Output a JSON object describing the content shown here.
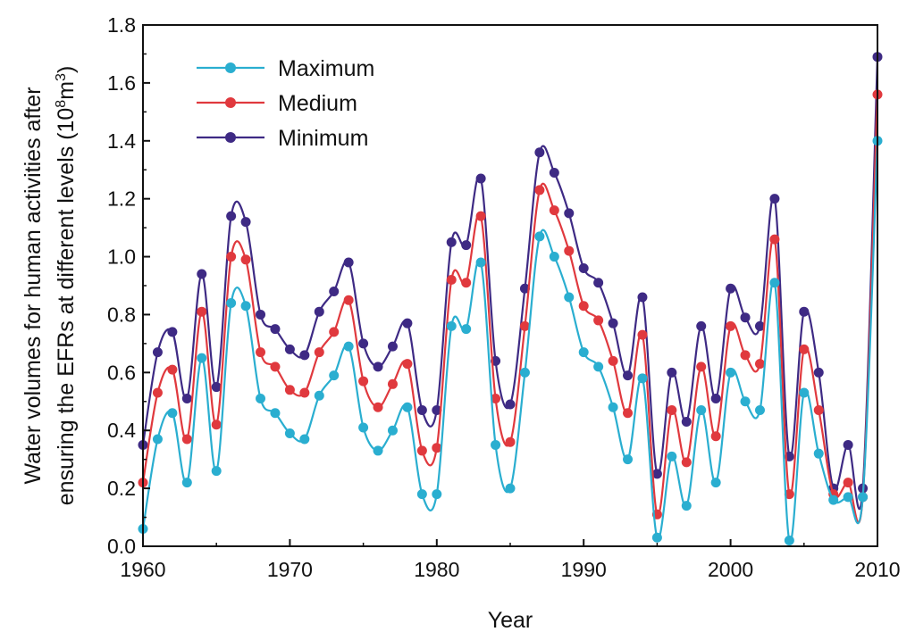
{
  "chart_data": {
    "type": "line",
    "xlabel": "Year",
    "ylabel_line1": "Water volumes for human activities after",
    "ylabel_line2_pre": "ensuring the EFRs at different levels (10",
    "ylabel_sup1": "8",
    "ylabel_mid": "m",
    "ylabel_sup2": "3",
    "ylabel_post": ")",
    "xlim": [
      1960,
      2010
    ],
    "ylim": [
      0,
      1.8
    ],
    "xticks": [
      "1960",
      "1970",
      "1980",
      "1990",
      "2000",
      "2010"
    ],
    "yticks": [
      "0.0",
      "0.2",
      "0.4",
      "0.6",
      "0.8",
      "1.0",
      "1.2",
      "1.4",
      "1.6",
      "1.8"
    ],
    "legend_position": "top-left",
    "x": [
      1960,
      1961,
      1962,
      1963,
      1964,
      1965,
      1966,
      1967,
      1968,
      1969,
      1970,
      1971,
      1972,
      1973,
      1974,
      1975,
      1976,
      1977,
      1978,
      1979,
      1980,
      1981,
      1982,
      1983,
      1984,
      1985,
      1986,
      1987,
      1988,
      1989,
      1990,
      1991,
      1992,
      1993,
      1994,
      1995,
      1996,
      1997,
      1998,
      1999,
      2000,
      2001,
      2002,
      2003,
      2004,
      2005,
      2006,
      2007,
      2008,
      2009,
      2010
    ],
    "series": [
      {
        "name": "Maximum",
        "color": "#2aaed0",
        "values": [
          0.06,
          0.37,
          0.46,
          0.22,
          0.65,
          0.26,
          0.84,
          0.83,
          0.51,
          0.46,
          0.39,
          0.37,
          0.52,
          0.59,
          0.69,
          0.41,
          0.33,
          0.4,
          0.48,
          0.18,
          0.18,
          0.76,
          0.75,
          0.98,
          0.35,
          0.2,
          0.6,
          1.07,
          1.0,
          0.86,
          0.67,
          0.62,
          0.48,
          0.3,
          0.58,
          0.03,
          0.31,
          0.14,
          0.47,
          0.22,
          0.6,
          0.5,
          0.47,
          0.91,
          0.02,
          0.53,
          0.32,
          0.16,
          0.17,
          0.17,
          1.4
        ]
      },
      {
        "name": "Medium",
        "color": "#e0393e",
        "values": [
          0.22,
          0.53,
          0.61,
          0.37,
          0.81,
          0.42,
          1.0,
          0.99,
          0.67,
          0.62,
          0.54,
          0.53,
          0.67,
          0.74,
          0.85,
          0.57,
          0.48,
          0.56,
          0.63,
          0.33,
          0.34,
          0.92,
          0.91,
          1.14,
          0.51,
          0.36,
          0.76,
          1.23,
          1.16,
          1.02,
          0.83,
          0.78,
          0.64,
          0.46,
          0.73,
          0.11,
          0.47,
          0.29,
          0.62,
          0.38,
          0.76,
          0.66,
          0.63,
          1.06,
          0.18,
          0.68,
          0.47,
          0.18,
          0.22,
          0.17,
          1.56
        ]
      },
      {
        "name": "Minimum",
        "color": "#3e2a84",
        "values": [
          0.35,
          0.67,
          0.74,
          0.51,
          0.94,
          0.55,
          1.14,
          1.12,
          0.8,
          0.75,
          0.68,
          0.66,
          0.81,
          0.88,
          0.98,
          0.7,
          0.62,
          0.69,
          0.77,
          0.47,
          0.47,
          1.05,
          1.04,
          1.27,
          0.64,
          0.49,
          0.89,
          1.36,
          1.29,
          1.15,
          0.96,
          0.91,
          0.77,
          0.59,
          0.86,
          0.25,
          0.6,
          0.43,
          0.76,
          0.51,
          0.89,
          0.79,
          0.76,
          1.2,
          0.31,
          0.81,
          0.6,
          0.2,
          0.35,
          0.2,
          1.69
        ]
      }
    ]
  }
}
